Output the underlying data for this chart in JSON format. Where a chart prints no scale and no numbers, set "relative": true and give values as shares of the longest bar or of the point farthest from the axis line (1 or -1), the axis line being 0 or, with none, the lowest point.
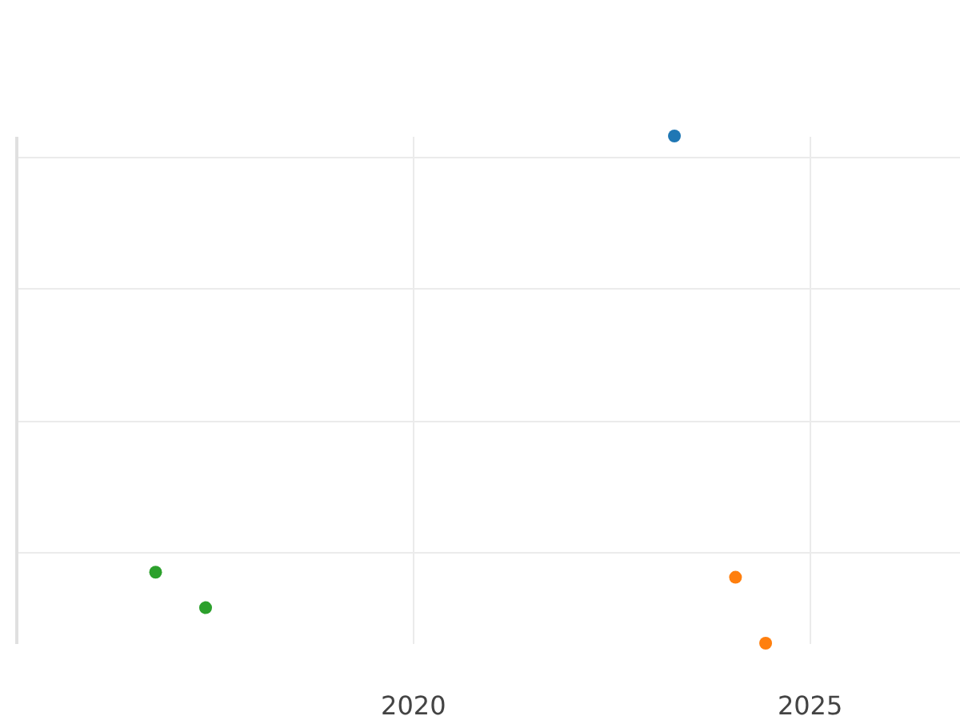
{
  "chart_data": {
    "type": "scatter",
    "relative": true,
    "xlim": [
      2015,
      2026.9
    ],
    "xticks": [
      2020,
      2025
    ],
    "grid": true,
    "marker": "circle",
    "tick_labels": "x",
    "series": [
      {
        "color": "#1f77b4",
        "x": [
          2023.3
        ],
        "values": [
          1
        ]
      },
      {
        "color": "#ff7f0e",
        "x": [
          2024.07,
          2024.45
        ],
        "values": [
          0.13,
          0
        ]
      },
      {
        "color": "#2ca02c",
        "x": [
          2016.76,
          2017.39
        ],
        "values": [
          0.14,
          0.07
        ]
      }
    ]
  }
}
